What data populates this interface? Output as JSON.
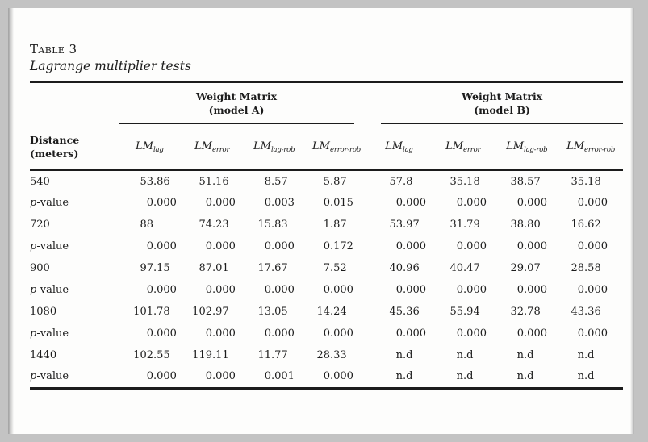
{
  "page": {
    "table_label": "Table 3",
    "table_title": "Lagrange multiplier tests"
  },
  "table": {
    "group_headers": [
      {
        "line1": "Weight Matrix",
        "line2": "(model A)"
      },
      {
        "line1": "Weight Matrix",
        "line2": "(model B)"
      }
    ],
    "stub_header": {
      "line1": "Distance",
      "line2": "(meters)"
    },
    "column_headers": [
      {
        "base": "LM",
        "sub": "lag"
      },
      {
        "base": "LM",
        "sub": "error"
      },
      {
        "base": "LM",
        "sub": "lag-rob"
      },
      {
        "base": "LM",
        "sub": "error-rob"
      },
      {
        "base": "LM",
        "sub": "lag"
      },
      {
        "base": "LM",
        "sub": "error"
      },
      {
        "base": "LM",
        "sub": "lag-rob"
      },
      {
        "base": "LM",
        "sub": "error-rob"
      }
    ],
    "rows": [
      {
        "label": "540",
        "type": "stat",
        "values": [
          "53.86",
          "51.16",
          "8.57",
          "5.87",
          "57.8",
          "35.18",
          "38.57",
          "35.18"
        ]
      },
      {
        "label": "p-value",
        "type": "pvalue",
        "values": [
          "0.000",
          "0.000",
          "0.003",
          "0.015",
          "0.000",
          "0.000",
          "0.000",
          "0.000"
        ]
      },
      {
        "label": "720",
        "type": "stat",
        "values": [
          "88",
          "74.23",
          "15.83",
          "1.87",
          "53.97",
          "31.79",
          "38.80",
          "16.62"
        ]
      },
      {
        "label": "p-value",
        "type": "pvalue",
        "values": [
          "0.000",
          "0.000",
          "0.000",
          "0.172",
          "0.000",
          "0.000",
          "0.000",
          "0.000"
        ]
      },
      {
        "label": "900",
        "type": "stat",
        "values": [
          "97.15",
          "87.01",
          "17.67",
          "7.52",
          "40.96",
          "40.47",
          "29.07",
          "28.58"
        ]
      },
      {
        "label": "p-value",
        "type": "pvalue",
        "values": [
          "0.000",
          "0.000",
          "0.000",
          "0.000",
          "0.000",
          "0.000",
          "0.000",
          "0.000"
        ]
      },
      {
        "label": "1080",
        "type": "stat",
        "values": [
          "101.78",
          "102.97",
          "13.05",
          "14.24",
          "45.36",
          "55.94",
          "32.78",
          "43.36"
        ]
      },
      {
        "label": "p-value",
        "type": "pvalue",
        "values": [
          "0.000",
          "0.000",
          "0.000",
          "0.000",
          "0.000",
          "0.000",
          "0.000",
          "0.000"
        ]
      },
      {
        "label": "1440",
        "type": "stat",
        "values": [
          "102.55",
          "119.11",
          "11.77",
          "28.33",
          "n.d",
          "n.d",
          "n.d",
          "n.d"
        ]
      },
      {
        "label": "p-value",
        "type": "pvalue",
        "values": [
          "0.000",
          "0.000",
          "0.001",
          "0.000",
          "n.d",
          "n.d",
          "n.d",
          "n.d"
        ]
      }
    ]
  },
  "colors": {
    "text": "#1c1c1c",
    "page_background": "#fdfdfc",
    "frame_background": "#c3c3c3",
    "rule": "#1c1c1c"
  }
}
